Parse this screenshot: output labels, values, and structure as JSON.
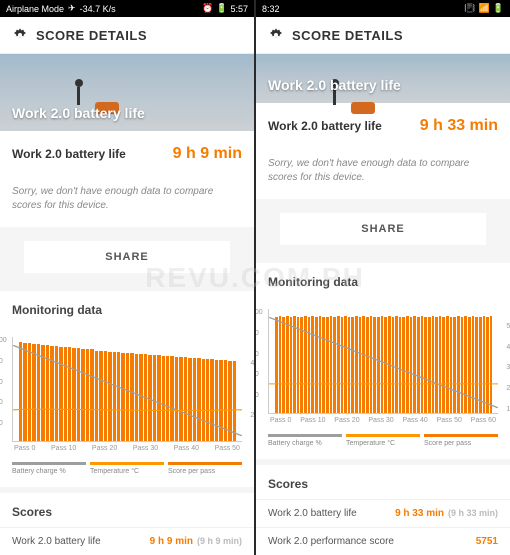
{
  "watermark": "REVU.COM.PH",
  "left": {
    "status": {
      "mode": "Airplane Mode",
      "net": "-34.7 K/s",
      "time": "5:57"
    },
    "header_title": "SCORE DETAILS",
    "hero_title": "Work 2.0 battery life",
    "result_label": "Work 2.0 battery life",
    "result_value": "9 h 9 min",
    "note": "Sorry, we don't have enough data to compare scores for this device.",
    "share": "SHARE",
    "monitoring_title": "Monitoring data",
    "chart": {
      "bars": [
        95,
        94,
        94,
        93,
        93,
        92,
        92,
        91,
        91,
        90,
        90,
        90,
        89,
        89,
        88,
        88,
        88,
        87,
        87,
        87,
        86,
        86,
        86,
        85,
        85,
        85,
        84,
        84,
        84,
        83,
        83,
        83,
        82,
        82,
        82,
        81,
        81,
        81,
        80,
        80,
        80,
        79,
        79,
        79,
        78,
        78,
        78,
        77,
        77
      ],
      "battery_line": "M 0 8 L 100 95",
      "temp_line": "M 0 70 C 20 68, 50 72, 100 70",
      "y_left": [
        "100",
        "80",
        "60",
        "40",
        "20",
        ""
      ],
      "y_right": [
        "",
        "4000",
        "",
        "2000",
        ""
      ],
      "x_ticks": [
        "Pass 0",
        "Pass 10",
        "Pass 20",
        "Pass 30",
        "Pass 40",
        "Pass 50"
      ],
      "legend": {
        "battery": "Battery charge %",
        "temp": "Temperature °C",
        "score": "Score per pass"
      },
      "colors": {
        "bar": "#f57c00",
        "battery": "#9e9e9e",
        "temp": "#ff9800",
        "grid": "#e8e8e8"
      }
    },
    "scores_title": "Scores",
    "scores": [
      {
        "label": "Work 2.0 battery life",
        "value": "9 h 9 min",
        "sub": "(9 h 9 min)"
      }
    ]
  },
  "right": {
    "status": {
      "time": "8:32"
    },
    "header_title": "SCORE DETAILS",
    "hero_title": "Work 2.0 battery life",
    "result_label": "Work 2.0 battery life",
    "result_value": "9 h 33 min",
    "note": "Sorry, we don't have enough data to compare scores for this device.",
    "share": "SHARE",
    "monitoring_title": "Monitoring data",
    "chart": {
      "bars": [
        92,
        93,
        92,
        93,
        92,
        93,
        92,
        92,
        93,
        92,
        93,
        92,
        93,
        92,
        92,
        93,
        92,
        93,
        92,
        93,
        92,
        92,
        93,
        92,
        93,
        92,
        93,
        92,
        92,
        93,
        92,
        93,
        92,
        93,
        92,
        92,
        93,
        92,
        93,
        92,
        93,
        92,
        92,
        93,
        92,
        93,
        92,
        93,
        92,
        92,
        93,
        92,
        93,
        92,
        93,
        92,
        92,
        93,
        92,
        93
      ],
      "battery_line": "M 0 8 L 100 95",
      "temp_line": "M 0 72 L 100 72",
      "y_left": [
        "100",
        "80",
        "60",
        "40",
        "20",
        ""
      ],
      "y_right": [
        "",
        "5000",
        "4000",
        "3000",
        "2000",
        "1000"
      ],
      "x_ticks": [
        "Pass 0",
        "Pass 10",
        "Pass 20",
        "Pass 30",
        "Pass 40",
        "Pass 50",
        "Pass 60"
      ],
      "legend": {
        "battery": "Battery charge %",
        "temp": "Temperature °C",
        "score": "Score per pass"
      },
      "colors": {
        "bar": "#f57c00",
        "battery": "#9e9e9e",
        "temp": "#ff9800",
        "grid": "#e8e8e8"
      }
    },
    "scores_title": "Scores",
    "scores": [
      {
        "label": "Work 2.0 battery life",
        "value": "9 h 33 min",
        "sub": "(9 h 33 min)"
      },
      {
        "label": "Work 2.0 performance score",
        "value": "5751",
        "sub": ""
      }
    ]
  }
}
